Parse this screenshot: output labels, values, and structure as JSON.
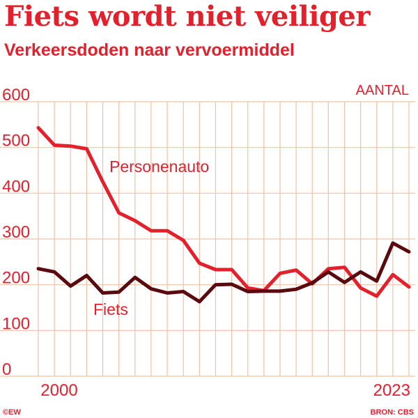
{
  "title": "Fiets wordt niet veiliger",
  "subtitle": "Verkeersdoden naar vervoermiddel",
  "unit_label": "AANTAL",
  "credit_left": "©EW",
  "credit_right": "BRON: CBS",
  "colors": {
    "accent": "#e4202c",
    "grid": "#f5c0a3",
    "fiets": "#5a0a0e",
    "auto": "#e4202c"
  },
  "chart_data": {
    "type": "line",
    "x": [
      2000,
      2001,
      2002,
      2003,
      2004,
      2005,
      2006,
      2007,
      2008,
      2009,
      2010,
      2011,
      2012,
      2013,
      2014,
      2015,
      2016,
      2017,
      2018,
      2019,
      2020,
      2021,
      2022,
      2023
    ],
    "x_tick_labels": [
      "2000",
      "2023"
    ],
    "ylim": [
      0,
      600
    ],
    "yticks": [
      0,
      100,
      200,
      300,
      400,
      500,
      600
    ],
    "ylabel": "AANTAL",
    "grid": true,
    "series": [
      {
        "name": "Personenauto",
        "values": [
          543,
          505,
          503,
          497,
          425,
          357,
          340,
          318,
          318,
          297,
          247,
          233,
          233,
          193,
          187,
          225,
          232,
          202,
          235,
          238,
          193,
          175,
          222,
          195
        ]
      },
      {
        "name": "Fiets",
        "values": [
          235,
          228,
          197,
          220,
          182,
          184,
          216,
          191,
          182,
          185,
          163,
          200,
          201,
          185,
          186,
          186,
          190,
          204,
          228,
          205,
          228,
          208,
          291,
          272
        ]
      }
    ]
  }
}
